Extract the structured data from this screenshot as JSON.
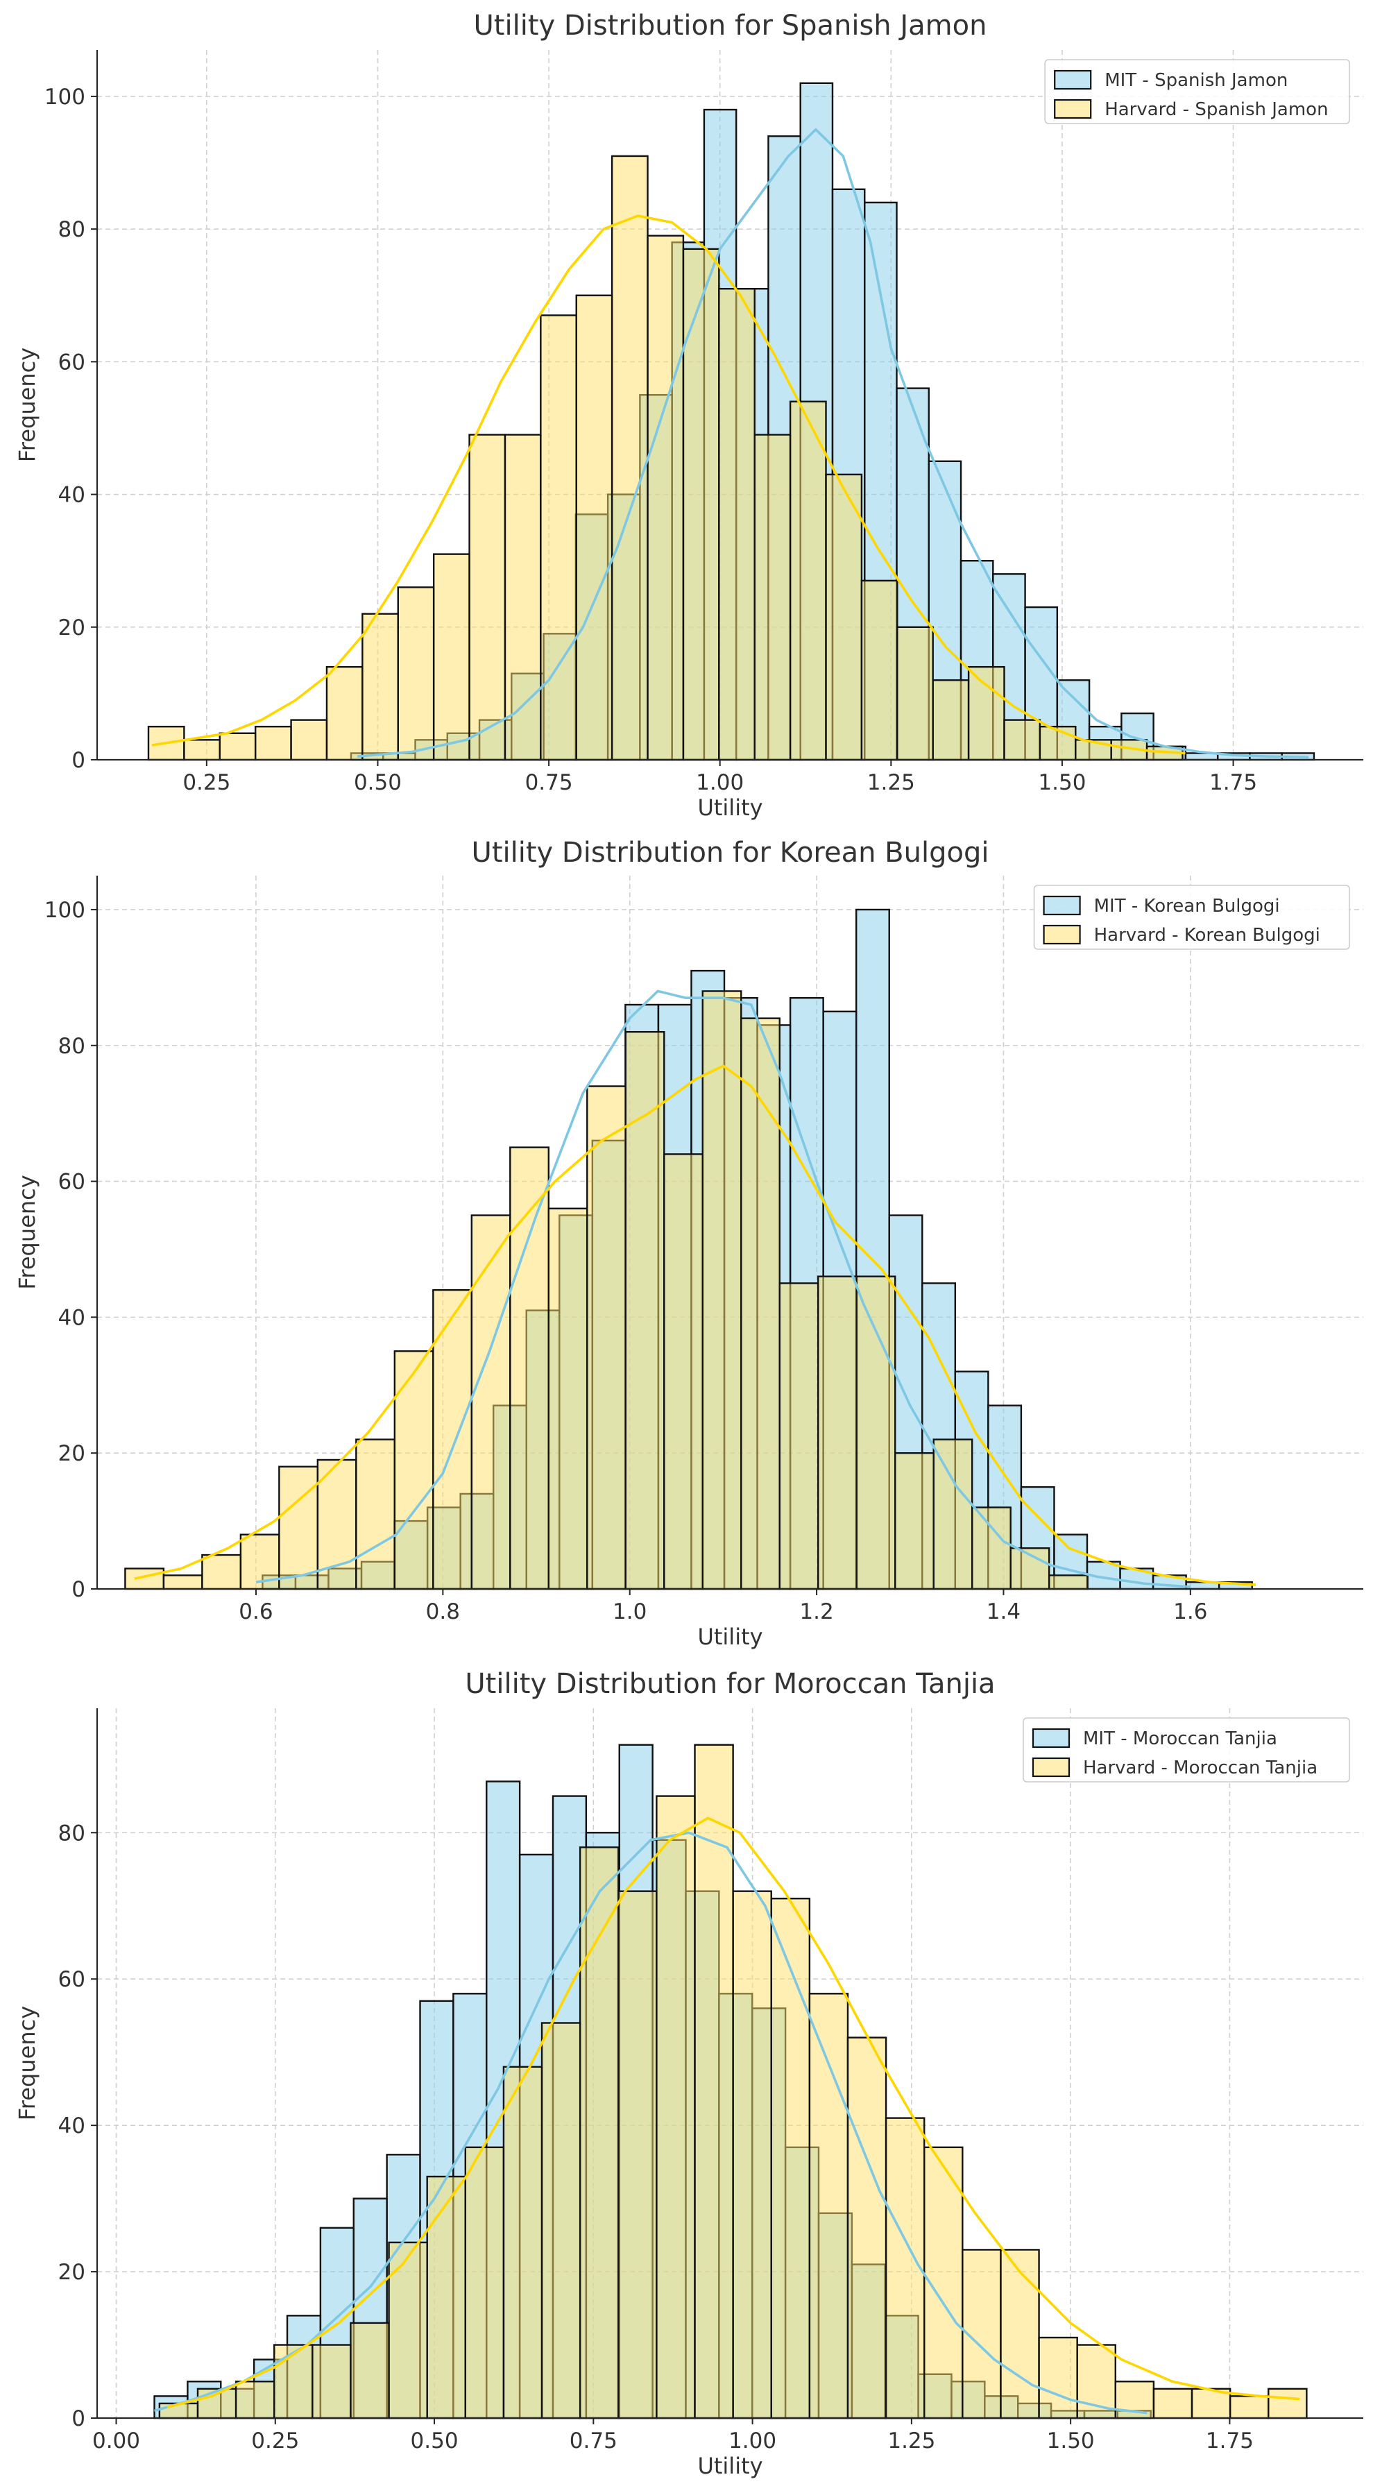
{
  "chart_data": [
    {
      "type": "histogram",
      "title": "Utility Distribution for Spanish Jamon",
      "xlabel": "Utility",
      "ylabel": "Frequency",
      "xlim": [
        0.09,
        1.94
      ],
      "ylim": [
        0,
        107
      ],
      "xticks": [
        0.25,
        0.5,
        0.75,
        1.0,
        1.25,
        1.5,
        1.75
      ],
      "xtick_labels": [
        "0.25",
        "0.50",
        "0.75",
        "1.00",
        "1.25",
        "1.50",
        "1.75"
      ],
      "yticks": [
        0,
        20,
        40,
        60,
        80,
        100
      ],
      "ytick_labels": [
        "0",
        "20",
        "40",
        "60",
        "80",
        "100"
      ],
      "grid": true,
      "legend_position": "top-right",
      "series": [
        {
          "name": "MIT - Spanish Jamon",
          "color": "#87CEEB",
          "kde_color": "#7EC8E3",
          "bin_start": 0.461,
          "bin_width": 0.0469,
          "counts": [
            1,
            1,
            3,
            4,
            6,
            13,
            19,
            37,
            40,
            55,
            78,
            98,
            71,
            94,
            102,
            86,
            84,
            56,
            45,
            30,
            28,
            23,
            12,
            5,
            7,
            2,
            1,
            1,
            1,
            1
          ],
          "kde": [
            [
              0.47,
              0.5
            ],
            [
              0.55,
              1.2
            ],
            [
              0.63,
              3
            ],
            [
              0.7,
              7
            ],
            [
              0.75,
              12
            ],
            [
              0.8,
              20
            ],
            [
              0.85,
              32
            ],
            [
              0.9,
              47
            ],
            [
              0.95,
              63
            ],
            [
              1.0,
              77
            ],
            [
              1.05,
              84
            ],
            [
              1.1,
              91
            ],
            [
              1.14,
              95
            ],
            [
              1.18,
              91
            ],
            [
              1.22,
              78
            ],
            [
              1.25,
              62
            ],
            [
              1.3,
              48
            ],
            [
              1.35,
              36
            ],
            [
              1.4,
              26
            ],
            [
              1.45,
              18
            ],
            [
              1.5,
              11
            ],
            [
              1.55,
              6
            ],
            [
              1.6,
              3.5
            ],
            [
              1.65,
              2
            ],
            [
              1.7,
              1.2
            ],
            [
              1.75,
              0.7
            ],
            [
              1.8,
              0.5
            ],
            [
              1.86,
              0.4
            ]
          ]
        },
        {
          "name": "Harvard - Spanish Jamon",
          "color": "#FFE066",
          "kde_color": "#FFD700",
          "bin_start": 0.165,
          "bin_width": 0.0521,
          "counts": [
            5,
            3,
            4,
            5,
            6,
            14,
            22,
            26,
            31,
            49,
            49,
            67,
            70,
            91,
            79,
            77,
            71,
            49,
            54,
            43,
            27,
            20,
            12,
            14,
            6,
            5,
            3,
            3,
            2
          ],
          "kde": [
            [
              0.17,
              2.2
            ],
            [
              0.22,
              3
            ],
            [
              0.28,
              4
            ],
            [
              0.33,
              6
            ],
            [
              0.38,
              9
            ],
            [
              0.43,
              13
            ],
            [
              0.48,
              19
            ],
            [
              0.53,
              27
            ],
            [
              0.58,
              36
            ],
            [
              0.63,
              46
            ],
            [
              0.68,
              57
            ],
            [
              0.73,
              66
            ],
            [
              0.78,
              74
            ],
            [
              0.83,
              80
            ],
            [
              0.88,
              82
            ],
            [
              0.93,
              81
            ],
            [
              0.98,
              77
            ],
            [
              1.03,
              70
            ],
            [
              1.08,
              61
            ],
            [
              1.13,
              51
            ],
            [
              1.18,
              41
            ],
            [
              1.23,
              32
            ],
            [
              1.28,
              24
            ],
            [
              1.33,
              17
            ],
            [
              1.38,
              12
            ],
            [
              1.43,
              8
            ],
            [
              1.48,
              5
            ],
            [
              1.53,
              3
            ],
            [
              1.58,
              2
            ],
            [
              1.63,
              1.3
            ],
            [
              1.68,
              1
            ]
          ]
        }
      ]
    },
    {
      "type": "histogram",
      "title": "Utility Distribution for Korean Bulgogi",
      "xlabel": "Utility",
      "ylabel": "Frequency",
      "xlim": [
        0.43,
        1.785
      ],
      "ylim": [
        0,
        105
      ],
      "xticks": [
        0.6,
        0.8,
        1.0,
        1.2,
        1.4,
        1.6
      ],
      "xtick_labels": [
        "0.6",
        "0.8",
        "1.0",
        "1.2",
        "1.4",
        "1.6"
      ],
      "yticks": [
        0,
        20,
        40,
        60,
        80,
        100
      ],
      "ytick_labels": [
        "0",
        "20",
        "40",
        "60",
        "80",
        "100"
      ],
      "grid": true,
      "legend_position": "top-right",
      "series": [
        {
          "name": "MIT - Korean Bulgogi",
          "color": "#87CEEB",
          "kde_color": "#7EC8E3",
          "bin_start": 0.607,
          "bin_width": 0.0353,
          "counts": [
            2,
            2,
            3,
            4,
            10,
            12,
            14,
            27,
            41,
            55,
            66,
            86,
            86,
            91,
            87,
            83,
            87,
            85,
            100,
            55,
            45,
            32,
            27,
            15,
            8,
            4,
            3,
            2,
            1,
            1
          ],
          "kde": [
            [
              0.6,
              1
            ],
            [
              0.65,
              2
            ],
            [
              0.7,
              4
            ],
            [
              0.75,
              8
            ],
            [
              0.8,
              17
            ],
            [
              0.85,
              35
            ],
            [
              0.9,
              55
            ],
            [
              0.95,
              73
            ],
            [
              1.0,
              84
            ],
            [
              1.03,
              88
            ],
            [
              1.06,
              87
            ],
            [
              1.1,
              87
            ],
            [
              1.13,
              86
            ],
            [
              1.16,
              76
            ],
            [
              1.2,
              60
            ],
            [
              1.25,
              42
            ],
            [
              1.3,
              27
            ],
            [
              1.35,
              15
            ],
            [
              1.4,
              7
            ],
            [
              1.45,
              3.5
            ],
            [
              1.5,
              1.8
            ],
            [
              1.55,
              0.8
            ],
            [
              1.6,
              0.3
            ]
          ]
        },
        {
          "name": "Harvard - Korean Bulgogi",
          "color": "#FFE066",
          "kde_color": "#FFD700",
          "bin_start": 0.46,
          "bin_width": 0.0412,
          "counts": [
            3,
            2,
            5,
            8,
            18,
            19,
            22,
            35,
            44,
            55,
            65,
            56,
            74,
            82,
            64,
            88,
            84,
            45,
            46,
            46,
            20,
            22,
            12,
            6,
            2
          ],
          "kde": [
            [
              0.47,
              1.5
            ],
            [
              0.52,
              3
            ],
            [
              0.57,
              6
            ],
            [
              0.62,
              10
            ],
            [
              0.67,
              16
            ],
            [
              0.72,
              23
            ],
            [
              0.77,
              32
            ],
            [
              0.82,
              42
            ],
            [
              0.87,
              52
            ],
            [
              0.92,
              60
            ],
            [
              0.97,
              66
            ],
            [
              1.02,
              70
            ],
            [
              1.07,
              75
            ],
            [
              1.1,
              77
            ],
            [
              1.13,
              74
            ],
            [
              1.17,
              66
            ],
            [
              1.22,
              54
            ],
            [
              1.27,
              47
            ],
            [
              1.32,
              37
            ],
            [
              1.37,
              23
            ],
            [
              1.42,
              13
            ],
            [
              1.47,
              6
            ],
            [
              1.52,
              3.5
            ],
            [
              1.57,
              2
            ],
            [
              1.62,
              1
            ],
            [
              1.67,
              0.6
            ]
          ]
        }
      ]
    },
    {
      "type": "histogram",
      "title": "Utility Distribution for Moroccan Tanjia",
      "xlabel": "Utility",
      "ylabel": "Frequency",
      "xlim": [
        -0.03,
        1.96
      ],
      "ylim": [
        0,
        97
      ],
      "xticks": [
        0.0,
        0.25,
        0.5,
        0.75,
        1.0,
        1.25,
        1.5,
        1.75
      ],
      "xtick_labels": [
        "0.00",
        "0.25",
        "0.50",
        "0.75",
        "1.00",
        "1.25",
        "1.50",
        "1.75"
      ],
      "yticks": [
        0,
        20,
        40,
        60,
        80
      ],
      "ytick_labels": [
        "0",
        "20",
        "40",
        "60",
        "80"
      ],
      "grid": true,
      "legend_position": "top-right",
      "series": [
        {
          "name": "MIT - Moroccan Tanjia",
          "color": "#87CEEB",
          "kde_color": "#7EC8E3",
          "bin_start": 0.06,
          "bin_width": 0.0522,
          "counts": [
            3,
            5,
            4,
            8,
            14,
            26,
            30,
            36,
            57,
            58,
            87,
            77,
            85,
            80,
            92,
            79,
            72,
            58,
            56,
            37,
            28,
            21,
            14,
            6,
            5,
            3,
            2,
            1,
            1,
            1
          ],
          "kde": [
            [
              0.06,
              1
            ],
            [
              0.12,
              2.5
            ],
            [
              0.2,
              5
            ],
            [
              0.3,
              10
            ],
            [
              0.4,
              18
            ],
            [
              0.5,
              30
            ],
            [
              0.6,
              45
            ],
            [
              0.68,
              60
            ],
            [
              0.76,
              72
            ],
            [
              0.84,
              79
            ],
            [
              0.9,
              80
            ],
            [
              0.96,
              78
            ],
            [
              1.02,
              70
            ],
            [
              1.08,
              57
            ],
            [
              1.14,
              44
            ],
            [
              1.2,
              31
            ],
            [
              1.26,
              21
            ],
            [
              1.32,
              13
            ],
            [
              1.38,
              8
            ],
            [
              1.44,
              4.5
            ],
            [
              1.5,
              2.5
            ],
            [
              1.56,
              1.3
            ],
            [
              1.62,
              0.7
            ]
          ]
        },
        {
          "name": "Harvard - Moroccan Tanjia",
          "color": "#FFE066",
          "kde_color": "#FFD700",
          "bin_start": 0.068,
          "bin_width": 0.0601,
          "counts": [
            2,
            4,
            5,
            10,
            10,
            13,
            24,
            33,
            37,
            48,
            54,
            78,
            72,
            85,
            92,
            72,
            71,
            58,
            52,
            41,
            37,
            23,
            23,
            11,
            10,
            5,
            4,
            4,
            3,
            4
          ],
          "kde": [
            [
              0.08,
              1.5
            ],
            [
              0.15,
              3
            ],
            [
              0.25,
              7
            ],
            [
              0.35,
              13
            ],
            [
              0.45,
              21
            ],
            [
              0.55,
              33
            ],
            [
              0.65,
              48
            ],
            [
              0.72,
              60
            ],
            [
              0.8,
              72
            ],
            [
              0.87,
              79
            ],
            [
              0.93,
              82
            ],
            [
              0.98,
              80
            ],
            [
              1.05,
              72
            ],
            [
              1.12,
              62
            ],
            [
              1.2,
              49
            ],
            [
              1.28,
              37
            ],
            [
              1.35,
              28
            ],
            [
              1.42,
              20
            ],
            [
              1.5,
              13
            ],
            [
              1.58,
              8
            ],
            [
              1.66,
              5
            ],
            [
              1.74,
              3.5
            ],
            [
              1.8,
              3
            ],
            [
              1.86,
              2.6
            ]
          ]
        }
      ]
    }
  ]
}
